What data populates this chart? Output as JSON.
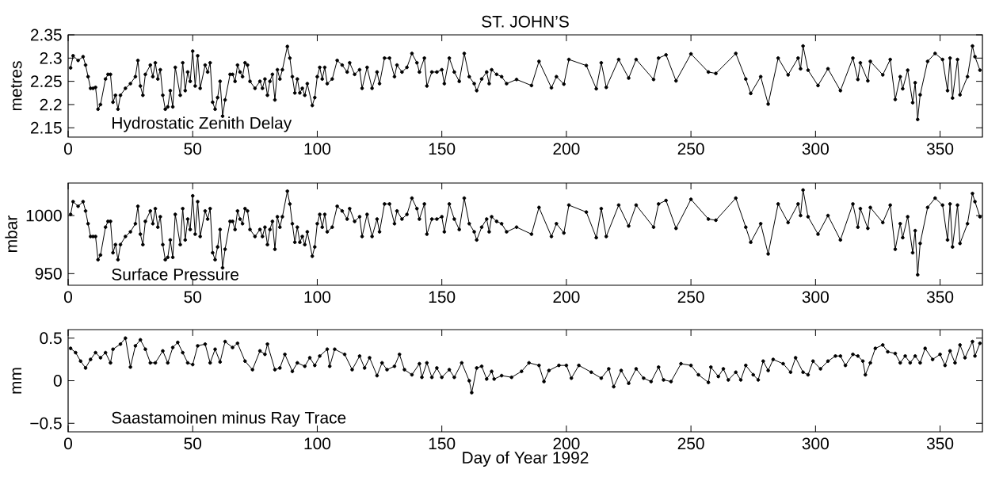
{
  "chart_data": [
    {
      "type": "line",
      "title": "ST. JOHN’S",
      "ylabel": "metres",
      "annotations": [
        "Hydrostatic Zenith Delay"
      ],
      "color": "#000000",
      "marker": "circle",
      "line_style": "solid",
      "x": [
        1,
        2,
        4,
        6,
        7,
        8,
        9,
        10,
        11,
        12,
        13,
        15,
        16,
        17,
        18,
        19,
        20,
        21,
        23,
        25,
        27,
        28,
        29,
        30,
        31,
        33,
        34,
        35,
        36,
        37,
        38,
        39,
        40,
        41,
        42,
        43,
        45,
        46,
        47,
        48,
        49,
        50,
        51,
        52,
        53,
        55,
        56,
        57,
        58,
        59,
        60,
        61,
        62,
        63,
        65,
        66,
        67,
        68,
        69,
        70,
        71,
        72,
        73,
        75,
        77,
        78,
        79,
        80,
        81,
        82,
        83,
        84,
        85,
        86,
        88,
        89,
        90,
        91,
        92,
        93,
        94,
        95,
        96,
        98,
        99,
        100,
        101,
        102,
        103,
        104,
        106,
        108,
        110,
        112,
        113,
        115,
        117,
        118,
        120,
        122,
        124,
        125,
        127,
        129,
        131,
        132,
        134,
        136,
        138,
        140,
        141,
        143,
        144,
        146,
        148,
        150,
        151,
        153,
        155,
        157,
        159,
        161,
        163,
        164,
        166,
        168,
        169,
        170,
        172,
        174,
        176,
        180,
        186,
        189,
        194,
        196,
        199,
        201,
        208,
        212,
        214,
        216,
        221,
        225,
        228,
        235,
        237,
        240,
        244,
        250,
        257,
        260,
        268,
        272,
        274,
        278,
        281,
        285,
        289,
        293,
        294,
        295,
        297,
        301,
        305,
        310,
        315,
        317,
        318,
        321,
        322,
        327,
        330,
        332,
        334,
        335,
        337,
        339,
        340,
        341,
        342,
        345,
        348,
        351,
        353,
        354,
        355,
        357,
        358,
        361,
        363,
        364,
        366
      ],
      "values": [
        2.279,
        2.305,
        2.295,
        2.303,
        2.285,
        2.26,
        2.235,
        2.235,
        2.237,
        2.19,
        2.2,
        2.255,
        2.265,
        2.265,
        2.205,
        2.22,
        2.19,
        2.22,
        2.235,
        2.245,
        2.26,
        2.295,
        2.24,
        2.22,
        2.265,
        2.285,
        2.26,
        2.29,
        2.255,
        2.275,
        2.22,
        2.19,
        2.195,
        2.23,
        2.195,
        2.28,
        2.22,
        2.29,
        2.23,
        2.27,
        2.25,
        2.315,
        2.24,
        2.305,
        2.235,
        2.285,
        2.27,
        2.29,
        2.205,
        2.19,
        2.215,
        2.25,
        2.175,
        2.21,
        2.265,
        2.265,
        2.25,
        2.285,
        2.27,
        2.26,
        2.29,
        2.285,
        2.25,
        2.235,
        2.25,
        2.235,
        2.255,
        2.22,
        2.25,
        2.265,
        2.21,
        2.275,
        2.255,
        2.275,
        2.325,
        2.3,
        2.26,
        2.225,
        2.255,
        2.225,
        2.235,
        2.22,
        2.245,
        2.198,
        2.215,
        2.26,
        2.28,
        2.255,
        2.28,
        2.245,
        2.255,
        2.295,
        2.285,
        2.27,
        2.29,
        2.265,
        2.275,
        2.235,
        2.28,
        2.235,
        2.27,
        2.245,
        2.3,
        2.3,
        2.26,
        2.285,
        2.27,
        2.28,
        2.31,
        2.29,
        2.27,
        2.3,
        2.24,
        2.27,
        2.27,
        2.275,
        2.245,
        2.3,
        2.27,
        2.25,
        2.31,
        2.26,
        2.245,
        2.23,
        2.255,
        2.27,
        2.245,
        2.275,
        2.265,
        2.26,
        2.245,
        2.254,
        2.241,
        2.293,
        2.236,
        2.26,
        2.244,
        2.297,
        2.284,
        2.234,
        2.29,
        2.237,
        2.297,
        2.257,
        2.297,
        2.254,
        2.3,
        2.307,
        2.251,
        2.309,
        2.27,
        2.267,
        2.31,
        2.255,
        2.224,
        2.26,
        2.201,
        2.3,
        2.264,
        2.3,
        2.277,
        2.326,
        2.274,
        2.241,
        2.277,
        2.23,
        2.3,
        2.254,
        2.29,
        2.251,
        2.293,
        2.264,
        2.297,
        2.211,
        2.26,
        2.234,
        2.274,
        2.204,
        2.247,
        2.168,
        2.221,
        2.293,
        2.31,
        2.297,
        2.23,
        2.3,
        2.214,
        2.297,
        2.221,
        2.26,
        2.326,
        2.303,
        2.274
      ],
      "xlim": [
        0,
        367
      ],
      "ylim": [
        2.13,
        2.35
      ],
      "xticks": [
        0,
        50,
        100,
        150,
        200,
        250,
        300,
        350
      ],
      "yticks": [
        2.15,
        2.2,
        2.25,
        2.3,
        2.35
      ]
    },
    {
      "type": "line",
      "ylabel": "mbar",
      "annotations": [
        "Surface Pressure"
      ],
      "color": "#000000",
      "marker": "circle",
      "line_style": "solid",
      "x": [
        1,
        2,
        4,
        6,
        7,
        8,
        9,
        10,
        11,
        12,
        13,
        15,
        16,
        17,
        18,
        19,
        20,
        21,
        23,
        25,
        27,
        28,
        29,
        30,
        31,
        33,
        34,
        35,
        36,
        37,
        38,
        39,
        40,
        41,
        42,
        43,
        45,
        46,
        47,
        48,
        49,
        50,
        51,
        52,
        53,
        55,
        56,
        57,
        58,
        59,
        60,
        61,
        62,
        63,
        65,
        66,
        67,
        68,
        69,
        70,
        71,
        72,
        73,
        75,
        77,
        78,
        79,
        80,
        81,
        82,
        83,
        84,
        85,
        86,
        88,
        89,
        90,
        91,
        92,
        93,
        94,
        95,
        96,
        98,
        99,
        100,
        101,
        102,
        103,
        104,
        106,
        108,
        110,
        112,
        113,
        115,
        117,
        118,
        120,
        122,
        124,
        125,
        127,
        129,
        131,
        132,
        134,
        136,
        138,
        140,
        141,
        143,
        144,
        146,
        148,
        150,
        151,
        153,
        155,
        157,
        159,
        161,
        163,
        164,
        166,
        168,
        169,
        170,
        172,
        174,
        176,
        180,
        186,
        189,
        194,
        196,
        199,
        201,
        208,
        212,
        214,
        216,
        221,
        225,
        228,
        235,
        237,
        240,
        244,
        250,
        257,
        260,
        268,
        272,
        274,
        278,
        281,
        285,
        289,
        293,
        294,
        295,
        297,
        301,
        305,
        310,
        315,
        317,
        318,
        321,
        322,
        327,
        330,
        332,
        334,
        335,
        337,
        339,
        340,
        341,
        342,
        345,
        348,
        351,
        353,
        354,
        355,
        357,
        358,
        361,
        363,
        364,
        366
      ],
      "values": [
        1001,
        1012,
        1008,
        1012,
        1004,
        993,
        982,
        982,
        982,
        962,
        966,
        990,
        995,
        995,
        968,
        975,
        962,
        975,
        982,
        986,
        993,
        1008,
        984,
        975,
        995,
        1004,
        993,
        1006,
        990,
        999,
        975,
        962,
        964,
        979,
        964,
        1001,
        975,
        1006,
        979,
        997,
        988,
        1017,
        984,
        1012,
        982,
        1004,
        997,
        1006,
        968,
        962,
        973,
        988,
        955,
        971,
        995,
        995,
        988,
        1004,
        997,
        993,
        1006,
        1004,
        988,
        982,
        988,
        982,
        990,
        975,
        988,
        995,
        971,
        999,
        990,
        999,
        1021,
        1010,
        993,
        977,
        990,
        977,
        982,
        975,
        986,
        965,
        973,
        993,
        1001,
        990,
        1001,
        986,
        990,
        1008,
        1004,
        997,
        1006,
        995,
        999,
        982,
        1001,
        982,
        997,
        986,
        1010,
        1010,
        993,
        1004,
        997,
        1001,
        1015,
        1006,
        997,
        1010,
        984,
        997,
        997,
        999,
        986,
        1010,
        997,
        988,
        1015,
        993,
        986,
        979,
        990,
        997,
        986,
        999,
        995,
        993,
        986,
        990,
        984,
        1007,
        982,
        993,
        985,
        1009,
        1003,
        981,
        1006,
        982,
        1009,
        991,
        1009,
        990,
        1010,
        1013,
        989,
        1014,
        997,
        996,
        1015,
        990,
        977,
        993,
        967,
        1010,
        994,
        1010,
        1000,
        1022,
        999,
        984,
        1000,
        979,
        1010,
        990,
        1006,
        989,
        1007,
        994,
        1009,
        971,
        993,
        981,
        999,
        968,
        987,
        949,
        976,
        1007,
        1015,
        1009,
        979,
        1010,
        973,
        1009,
        976,
        993,
        1019,
        1012,
        999
      ],
      "xlim": [
        0,
        367
      ],
      "ylim": [
        940,
        1028
      ],
      "xticks": [
        0,
        50,
        100,
        150,
        200,
        250,
        300,
        350
      ],
      "yticks": [
        950,
        1000
      ]
    },
    {
      "type": "line",
      "xlabel": "Day of Year 1992",
      "ylabel": "mm",
      "annotations": [
        "Saastamoinen minus Ray Trace"
      ],
      "color": "#000000",
      "marker": "circle",
      "line_style": "solid",
      "x": [
        1,
        3,
        5,
        7,
        9,
        11,
        13,
        15,
        17,
        18,
        21,
        23,
        25,
        27,
        29,
        31,
        33,
        35,
        38,
        40,
        42,
        44,
        46,
        48,
        50,
        52,
        55,
        57,
        59,
        61,
        63,
        66,
        68,
        71,
        74,
        77,
        79,
        80,
        83,
        85,
        87,
        90,
        92,
        95,
        97,
        99,
        101,
        104,
        105,
        107,
        111,
        114,
        117,
        119,
        121,
        124,
        126,
        128,
        131,
        133,
        135,
        138,
        141,
        142,
        144,
        146,
        148,
        150,
        153,
        155,
        158,
        161,
        162,
        164,
        166,
        168,
        170,
        171,
        174,
        178,
        182,
        185,
        189,
        191,
        193,
        197,
        200,
        202,
        205,
        210,
        214,
        217,
        219,
        222,
        225,
        228,
        231,
        234,
        237,
        239,
        242,
        246,
        250,
        253,
        257,
        258,
        261,
        263,
        265,
        268,
        270,
        272,
        275,
        277,
        279,
        281,
        283,
        287,
        290,
        292,
        295,
        297,
        299,
        302,
        305,
        308,
        310,
        312,
        315,
        317,
        319,
        320,
        322,
        324,
        327,
        329,
        332,
        334,
        336,
        338,
        340,
        342,
        344,
        347,
        350,
        352,
        354,
        356,
        358,
        360,
        363,
        364,
        366
      ],
      "values": [
        0.38,
        0.33,
        0.23,
        0.15,
        0.25,
        0.33,
        0.27,
        0.33,
        0.21,
        0.37,
        0.43,
        0.5,
        0.16,
        0.41,
        0.48,
        0.37,
        0.21,
        0.21,
        0.35,
        0.21,
        0.39,
        0.45,
        0.33,
        0.21,
        0.19,
        0.41,
        0.43,
        0.21,
        0.37,
        0.22,
        0.46,
        0.39,
        0.44,
        0.23,
        0.13,
        0.35,
        0.31,
        0.43,
        0.13,
        0.15,
        0.31,
        0.11,
        0.21,
        0.17,
        0.27,
        0.18,
        0.29,
        0.37,
        0.17,
        0.37,
        0.31,
        0.13,
        0.29,
        0.15,
        0.27,
        0.06,
        0.21,
        0.13,
        0.17,
        0.31,
        0.13,
        0.07,
        0.2,
        0.04,
        0.21,
        0.04,
        0.15,
        0.04,
        0.13,
        0.04,
        0.21,
        0.0,
        -0.14,
        0.15,
        0.17,
        0.02,
        0.11,
        0.02,
        0.06,
        0.04,
        0.11,
        0.21,
        0.18,
        -0.01,
        0.12,
        0.18,
        0.18,
        0.03,
        0.18,
        0.1,
        0.03,
        0.14,
        -0.07,
        0.12,
        -0.03,
        0.14,
        0.03,
        -0.01,
        0.16,
        0.01,
        -0.01,
        0.2,
        0.18,
        0.07,
        -0.02,
        0.16,
        0.05,
        0.14,
        0.01,
        0.1,
        0.01,
        0.18,
        0.07,
        0.01,
        0.23,
        0.12,
        0.25,
        0.2,
        0.1,
        0.27,
        0.1,
        0.07,
        0.23,
        0.14,
        0.23,
        0.29,
        0.29,
        0.18,
        0.31,
        0.29,
        0.23,
        0.07,
        0.21,
        0.38,
        0.42,
        0.34,
        0.32,
        0.21,
        0.29,
        0.21,
        0.29,
        0.21,
        0.38,
        0.25,
        0.31,
        0.18,
        0.35,
        0.21,
        0.42,
        0.27,
        0.46,
        0.29,
        0.44
      ],
      "xlim": [
        0,
        367
      ],
      "ylim": [
        -0.6,
        0.6
      ],
      "xticks": [
        0,
        50,
        100,
        150,
        200,
        250,
        300,
        350
      ],
      "yticks": [
        {
          "value": -0.5,
          "label": "−0.5"
        },
        0,
        0.5
      ]
    }
  ]
}
